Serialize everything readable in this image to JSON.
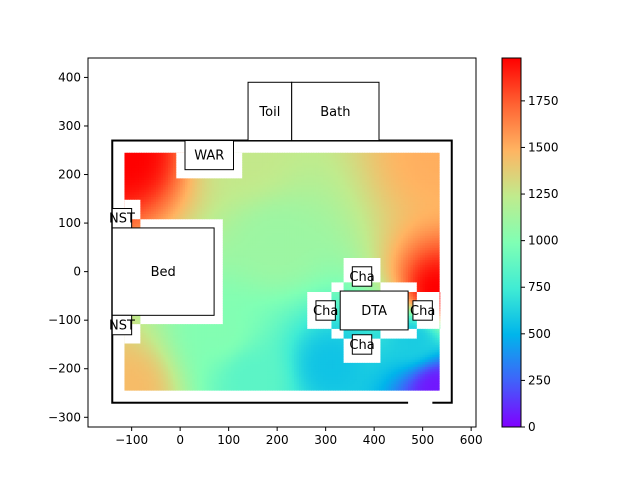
{
  "chart_data": {
    "type": "heatmap",
    "title": "",
    "xlabel": "",
    "ylabel": "",
    "xlim": [
      -190,
      610
    ],
    "ylim": [
      -320,
      440
    ],
    "x_ticks": [
      -100,
      0,
      100,
      200,
      300,
      400,
      500,
      600
    ],
    "y_ticks": [
      -300,
      -200,
      -100,
      0,
      100,
      200,
      300,
      400
    ],
    "colormap": "rainbow",
    "colorbar": {
      "min": 0,
      "max": 1980,
      "ticks": [
        0,
        250,
        500,
        750,
        1000,
        1250,
        1500,
        1750
      ]
    },
    "room_outline": {
      "x0": -140,
      "x1": 560,
      "y0": -270,
      "y1": 270
    },
    "heat_region": {
      "x0": -115,
      "x1": 535,
      "y0": -245,
      "y1": 245
    },
    "heat_samples": [
      {
        "x": -110,
        "y": 240,
        "value": 1980
      },
      {
        "x": 140,
        "y": 240,
        "value": 1250
      },
      {
        "x": 530,
        "y": 240,
        "value": 1500
      },
      {
        "x": 530,
        "y": -40,
        "value": 1980
      },
      {
        "x": 200,
        "y": 60,
        "value": 1100
      },
      {
        "x": 80,
        "y": -120,
        "value": 1000
      },
      {
        "x": -110,
        "y": -240,
        "value": 1450
      },
      {
        "x": 150,
        "y": -220,
        "value": 850
      },
      {
        "x": 310,
        "y": -190,
        "value": 560
      },
      {
        "x": 530,
        "y": -240,
        "value": 60
      },
      {
        "x": 480,
        "y": -140,
        "value": 600
      }
    ],
    "furniture": [
      {
        "label": "Toil",
        "x0": 140,
        "x1": 230,
        "y0": 270,
        "y1": 390
      },
      {
        "label": "Bath",
        "x0": 230,
        "x1": 410,
        "y0": 270,
        "y1": 390
      },
      {
        "label": "WAR",
        "x0": 10,
        "x1": 110,
        "y0": 210,
        "y1": 270
      },
      {
        "label": "NST",
        "x0": -140,
        "x1": -100,
        "y0": 90,
        "y1": 130
      },
      {
        "label": "Bed",
        "x0": -140,
        "x1": 70,
        "y0": -90,
        "y1": 90
      },
      {
        "label": "NST",
        "x0": -140,
        "x1": -100,
        "y0": -130,
        "y1": -90
      },
      {
        "label": "Cha",
        "x0": 355,
        "x1": 395,
        "y0": -30,
        "y1": 10
      },
      {
        "label": "Cha",
        "x0": 280,
        "x1": 320,
        "y0": -100,
        "y1": -60
      },
      {
        "label": "DTA",
        "x0": 330,
        "x1": 470,
        "y0": -120,
        "y1": -40
      },
      {
        "label": "Cha",
        "x0": 480,
        "x1": 520,
        "y0": -100,
        "y1": -60
      },
      {
        "label": "Cha",
        "x0": 355,
        "x1": 395,
        "y0": -170,
        "y1": -130
      }
    ]
  }
}
